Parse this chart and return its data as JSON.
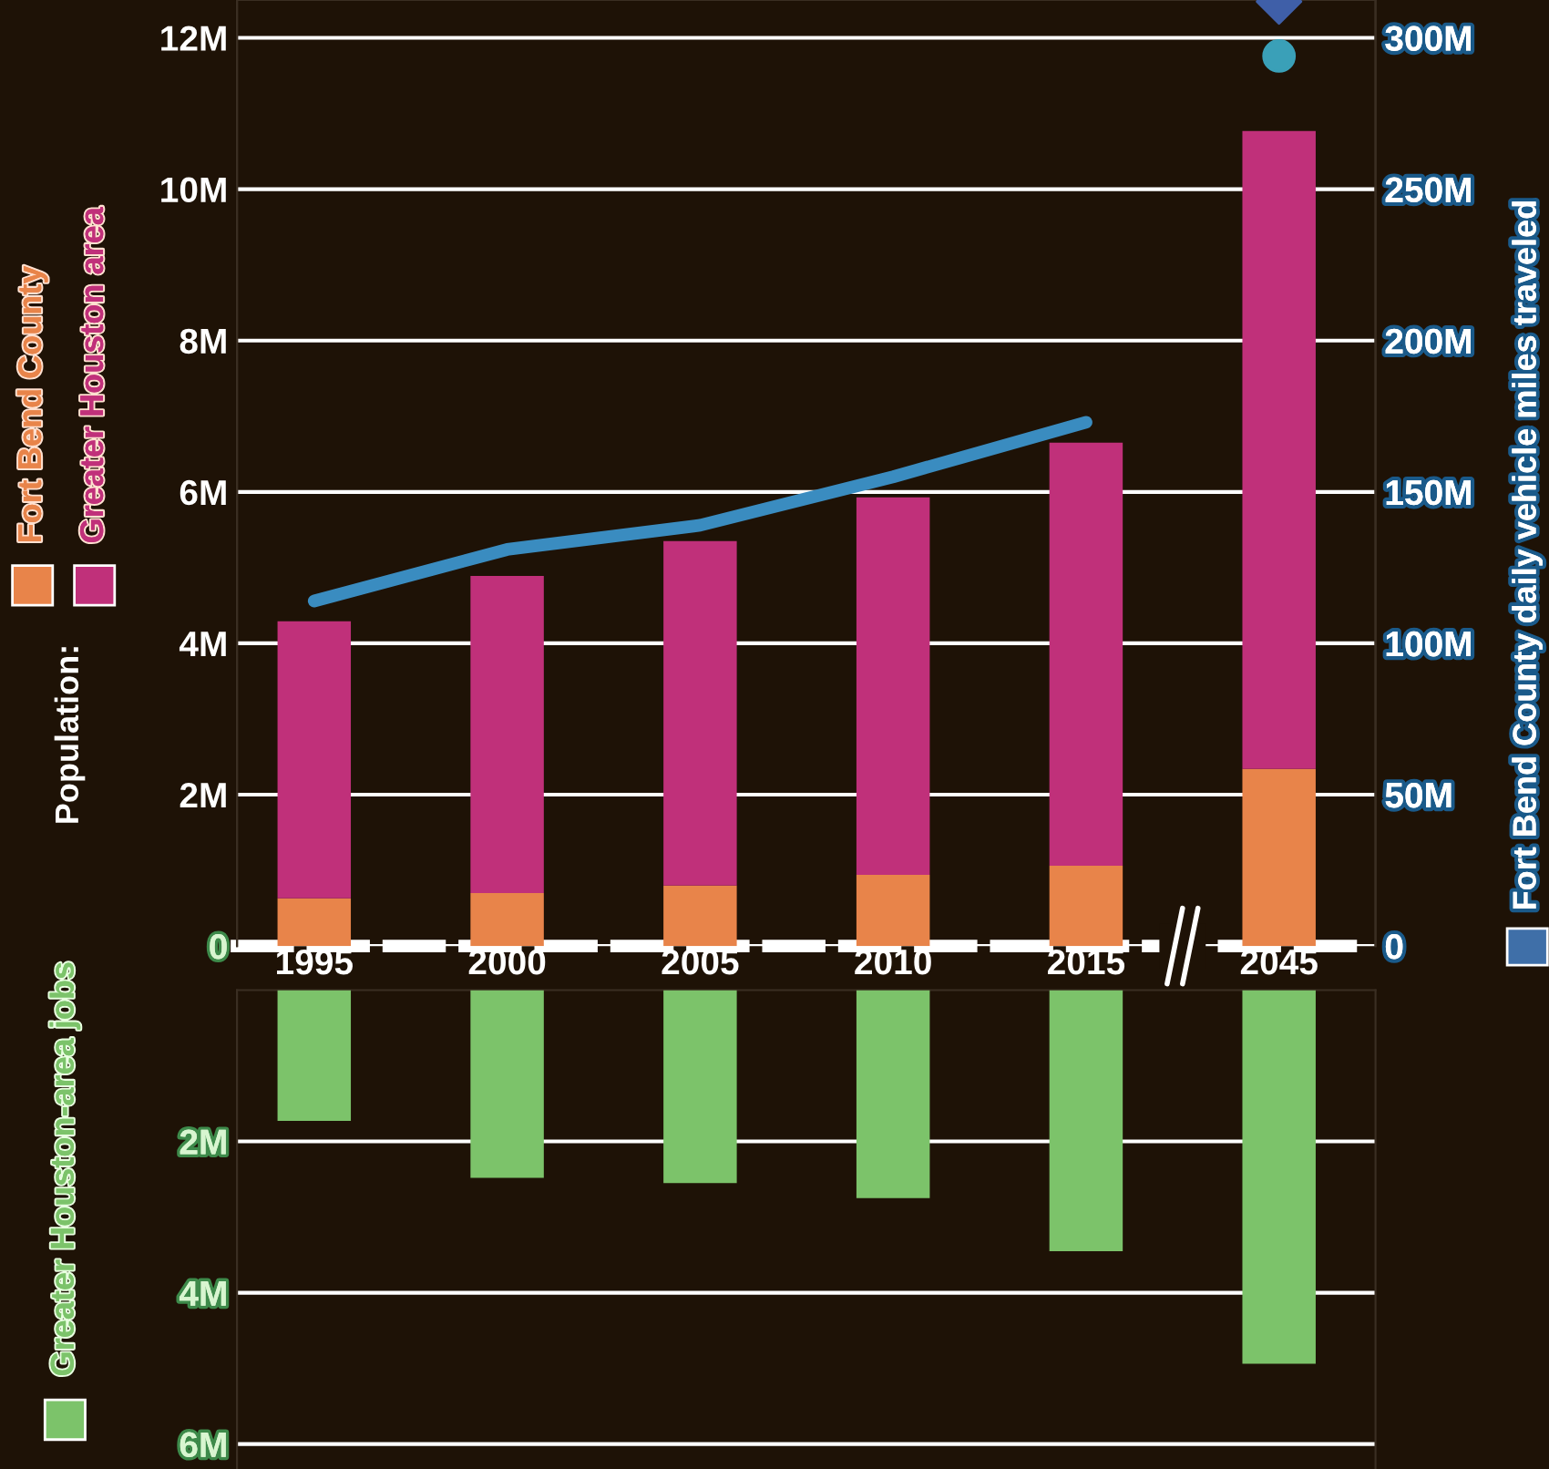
{
  "chart_data": [
    {
      "type": "bar",
      "stacked": true,
      "categories": [
        "1995",
        "2000",
        "2005",
        "2010",
        "2015",
        "2045"
      ],
      "legend_title": "Population:",
      "legend": "left",
      "grid": "y",
      "y2label": "Fort Bend County daily vehicle miles traveled",
      "ylim": [
        0,
        12.5
      ],
      "yticks": [
        0,
        {
          "value": 2,
          "label": "2M"
        },
        {
          "value": 4,
          "label": "4M"
        },
        {
          "value": 6,
          "label": "6M"
        },
        {
          "value": 8,
          "label": "8M"
        },
        {
          "value": 10,
          "label": "10M"
        },
        {
          "value": 12,
          "label": "12M"
        }
      ],
      "y2lim": [
        0,
        312.5
      ],
      "y2ticks": [
        0,
        {
          "value": 50,
          "label": "50M"
        },
        {
          "value": 100,
          "label": "100M"
        },
        {
          "value": 150,
          "label": "150M"
        },
        {
          "value": 200,
          "label": "200M"
        },
        {
          "value": 250,
          "label": "250M"
        },
        {
          "value": 300,
          "label": "300M"
        }
      ],
      "series": [
        {
          "name": "Fort Bend County",
          "color": "#e8844a",
          "values": [
            0.63,
            0.7,
            0.8,
            0.94,
            1.06,
            2.34
          ]
        },
        {
          "name": "Greater Houston area",
          "color": "#c0307a",
          "values": [
            3.66,
            4.19,
            4.55,
            4.99,
            5.59,
            8.43
          ]
        },
        {
          "type": "line",
          "axis": "y2",
          "color": "#3a8cc0",
          "marker": "none",
          "line_style": "solid",
          "values": [
            114,
            131,
            139,
            155,
            173,
            null
          ]
        },
        {
          "type": "scatter",
          "axis": "y2",
          "color": "#3aa0b8",
          "marker": "circle",
          "values": [
            null,
            null,
            null,
            null,
            null,
            294
          ]
        },
        {
          "type": "scatter",
          "axis": "y2",
          "color": "#3f5fa8",
          "marker": "diamond",
          "values": [
            null,
            null,
            null,
            null,
            null,
            312
          ]
        }
      ]
    },
    {
      "type": "bar",
      "legend": "left",
      "grid": "y",
      "tick_labels": "y",
      "categories": [
        "1995",
        "2000",
        "2005",
        "2010",
        "2015",
        "2045"
      ],
      "ylim": [
        6.33,
        0
      ],
      "yticks": [
        {
          "value": 2,
          "label": "2M"
        },
        {
          "value": 4,
          "label": "4M"
        },
        {
          "value": 6,
          "label": "6M"
        }
      ],
      "series": [
        {
          "name": "Greater Houston-area jobs",
          "color": "#7cc36a",
          "values": [
            1.73,
            2.48,
            2.55,
            2.75,
            3.45,
            4.94
          ]
        }
      ]
    }
  ]
}
